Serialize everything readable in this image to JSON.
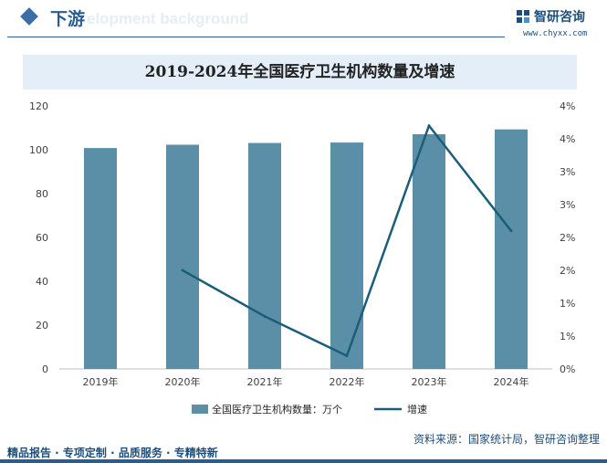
{
  "header": {
    "section_title": "下游",
    "watermark_text": "elopment background",
    "logo_name": "智研咨询",
    "logo_url": "www.chyxx.com"
  },
  "chart_data": {
    "type": "bar",
    "title": "2019-2024年全国医疗卫生机构数量及增速",
    "categories": [
      "2019年",
      "2020年",
      "2021年",
      "2022年",
      "2023年",
      "2024年"
    ],
    "series": [
      {
        "name": "全国医疗卫生机构数量：万个",
        "type": "bar",
        "axis": "left",
        "values": [
          100.8,
          102.3,
          103.1,
          103.3,
          107.1,
          109.3
        ]
      },
      {
        "name": "增速",
        "type": "line",
        "axis": "right",
        "values": [
          null,
          1.5,
          0.8,
          0.2,
          3.7,
          2.1
        ]
      }
    ],
    "y_left": {
      "min": 0,
      "max": 120,
      "ticks": [
        "0",
        "20",
        "40",
        "60",
        "80",
        "100",
        "120"
      ]
    },
    "y_right": {
      "min": 0,
      "max": 4,
      "ticks": [
        "0%",
        "1%",
        "1%",
        "2%",
        "2%",
        "3%",
        "3%",
        "4%",
        "4%"
      ]
    },
    "legend_position": "bottom",
    "grid": false,
    "colors": {
      "bar": "#5b8fa8",
      "line": "#1a5e7a"
    }
  },
  "footer": {
    "left": "精品报告 · 专项定制 · 品质服务 · 专精特新",
    "right": "资料来源：国家统计局，智研咨询整理"
  }
}
